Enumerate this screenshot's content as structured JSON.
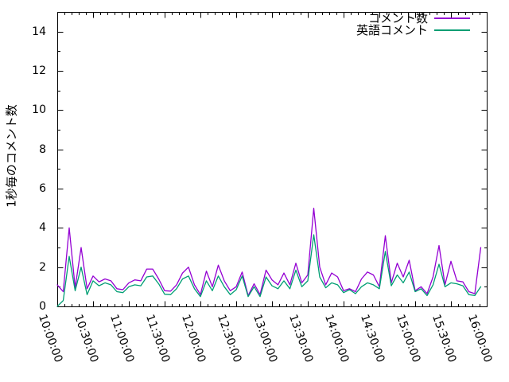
{
  "chart_data": {
    "type": "line",
    "title": "",
    "xlabel": "",
    "ylabel": "1秒毎のコメント数",
    "ylim": [
      0,
      15
    ],
    "ytick_values": [
      0,
      2,
      4,
      6,
      8,
      10,
      12,
      14
    ],
    "ytick_minor_step": 1,
    "xtick_major_labels": [
      "10:00:00",
      "10:30:00",
      "11:00:00",
      "11:30:00",
      "12:00:00",
      "12:30:00",
      "13:00:00",
      "13:30:00",
      "14:00:00",
      "14:30:00",
      "15:00:00",
      "15:30:00",
      "16:00:00"
    ],
    "xtick_minor_step_minutes": 6,
    "x_range_minutes": [
      0,
      360
    ],
    "grid": false,
    "legend_position": "top-right-inside",
    "background": "#ffffff",
    "axis_color": "#000000",
    "x": [
      "10:00:00",
      "10:05:00",
      "10:10:00",
      "10:15:00",
      "10:20:00",
      "10:25:00",
      "10:30:00",
      "10:35:00",
      "10:40:00",
      "10:45:00",
      "10:50:00",
      "10:55:00",
      "11:00:00",
      "11:05:00",
      "11:10:00",
      "11:15:00",
      "11:20:00",
      "11:25:00",
      "11:30:00",
      "11:35:00",
      "11:40:00",
      "11:45:00",
      "11:50:00",
      "11:55:00",
      "12:00:00",
      "12:05:00",
      "12:10:00",
      "12:15:00",
      "12:20:00",
      "12:25:00",
      "12:30:00",
      "12:35:00",
      "12:40:00",
      "12:45:00",
      "12:50:00",
      "12:55:00",
      "13:00:00",
      "13:05:00",
      "13:10:00",
      "13:15:00",
      "13:20:00",
      "13:25:00",
      "13:30:00",
      "13:35:00",
      "13:40:00",
      "13:45:00",
      "13:50:00",
      "13:55:00",
      "14:00:00",
      "14:05:00",
      "14:10:00",
      "14:15:00",
      "14:20:00",
      "14:25:00",
      "14:30:00",
      "14:35:00",
      "14:40:00",
      "14:45:00",
      "14:50:00",
      "14:55:00",
      "15:00:00",
      "15:05:00",
      "15:10:00",
      "15:15:00",
      "15:20:00",
      "15:25:00",
      "15:30:00",
      "15:35:00",
      "15:40:00",
      "15:45:00",
      "15:50:00",
      "15:55:00"
    ],
    "series": [
      {
        "name": "コメント数",
        "color": "#9400d3",
        "values": [
          1.1,
          0.75,
          4.0,
          0.95,
          3.0,
          0.9,
          1.55,
          1.25,
          1.4,
          1.3,
          0.9,
          0.85,
          1.2,
          1.35,
          1.3,
          1.9,
          1.9,
          1.4,
          0.8,
          0.78,
          1.1,
          1.7,
          2.0,
          1.1,
          0.6,
          1.8,
          1.0,
          2.1,
          1.3,
          0.8,
          1.0,
          1.75,
          0.55,
          1.15,
          0.6,
          1.85,
          1.35,
          1.1,
          1.7,
          1.1,
          2.2,
          1.2,
          1.6,
          5.0,
          2.0,
          1.1,
          1.7,
          1.5,
          0.8,
          0.9,
          0.75,
          1.4,
          1.75,
          1.6,
          1.0,
          3.6,
          1.2,
          2.2,
          1.5,
          2.35,
          0.8,
          1.0,
          0.65,
          1.5,
          3.1,
          1.1,
          2.3,
          1.3,
          1.25,
          0.75,
          0.65,
          3.0
        ]
      },
      {
        "name": "英語コメント",
        "color": "#009e73",
        "values": [
          0.0,
          0.3,
          2.55,
          0.8,
          2.0,
          0.6,
          1.3,
          1.05,
          1.2,
          1.1,
          0.75,
          0.7,
          1.0,
          1.1,
          1.05,
          1.5,
          1.55,
          1.15,
          0.62,
          0.6,
          0.9,
          1.4,
          1.55,
          0.9,
          0.5,
          1.3,
          0.8,
          1.55,
          1.0,
          0.6,
          0.85,
          1.55,
          0.5,
          1.0,
          0.5,
          1.5,
          1.05,
          0.9,
          1.3,
          0.9,
          1.85,
          1.0,
          1.3,
          3.65,
          1.5,
          0.95,
          1.2,
          1.1,
          0.7,
          0.85,
          0.65,
          1.0,
          1.2,
          1.1,
          0.9,
          2.8,
          1.05,
          1.6,
          1.2,
          1.75,
          0.75,
          0.9,
          0.55,
          1.1,
          2.15,
          1.0,
          1.2,
          1.15,
          1.05,
          0.6,
          0.55,
          1.0
        ]
      }
    ]
  }
}
